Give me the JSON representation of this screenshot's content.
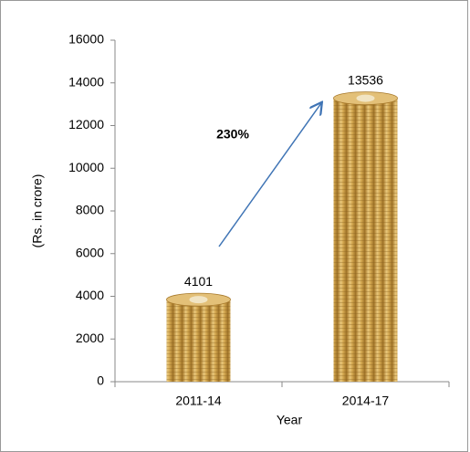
{
  "chart_data": {
    "type": "bar",
    "y_label": "(Rs. in crore)",
    "x_label": "Year",
    "annotation": "230%",
    "categories": [
      "2011-14",
      "2014-17"
    ],
    "values": [
      4101,
      13536
    ],
    "color": "#c9a14a",
    "ylim": [
      0,
      16000
    ],
    "yticks": [
      0,
      2000,
      4000,
      6000,
      8000,
      10000,
      12000,
      14000,
      16000
    ]
  }
}
